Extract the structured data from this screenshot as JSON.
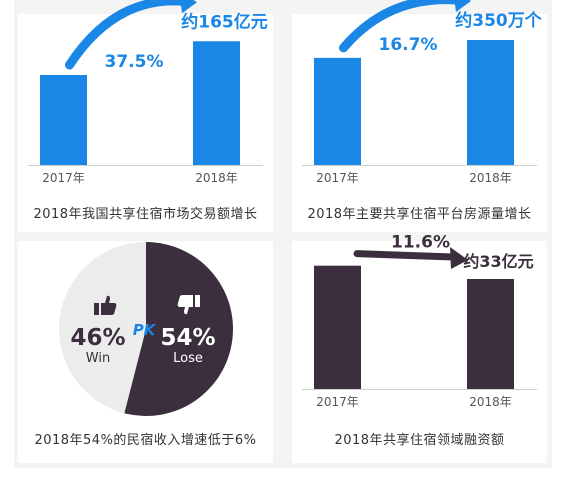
{
  "colors": {
    "blue": "#1a86e6",
    "dark": "#3b2f3d",
    "pie_light": "#ececec",
    "text_dark": "#333333"
  },
  "chart_data": [
    {
      "type": "bar",
      "categories": [
        "2017年",
        "2018年"
      ],
      "values": [
        1200,
        1650
      ],
      "value_label": "约165亿元",
      "growth_label": "37.5%",
      "caption": "2018年我国共享住宿市场交易额增长",
      "color": "#1a86e6",
      "ylim": [
        0,
        2000
      ]
    },
    {
      "type": "bar",
      "categories": [
        "2017年",
        "2018年"
      ],
      "values": [
        300,
        350
      ],
      "value_label": "约350万个",
      "growth_label": "16.7%",
      "caption": "2018年主要共享住宿平台房源量增长",
      "color": "#1a86e6",
      "ylim": [
        0,
        420
      ]
    },
    {
      "type": "pie",
      "slices": [
        {
          "name": "Win",
          "value": 46,
          "label": "46%",
          "color": "#ececec",
          "icon": "thumbs-up-icon"
        },
        {
          "name": "Lose",
          "value": 54,
          "label": "54%",
          "color": "#3b2f3d",
          "icon": "thumbs-down-icon"
        }
      ],
      "center_label": "PK",
      "caption": "2018年54%的民宿收入增速低于6%"
    },
    {
      "type": "bar",
      "categories": [
        "2017年",
        "2018年"
      ],
      "values": [
        37,
        33
      ],
      "value_label": "约33亿元",
      "growth_label": "11.6%",
      "caption": "2018年共享住宿领域融资额",
      "color": "#3b2f3d",
      "ylim": [
        0,
        42
      ]
    }
  ]
}
